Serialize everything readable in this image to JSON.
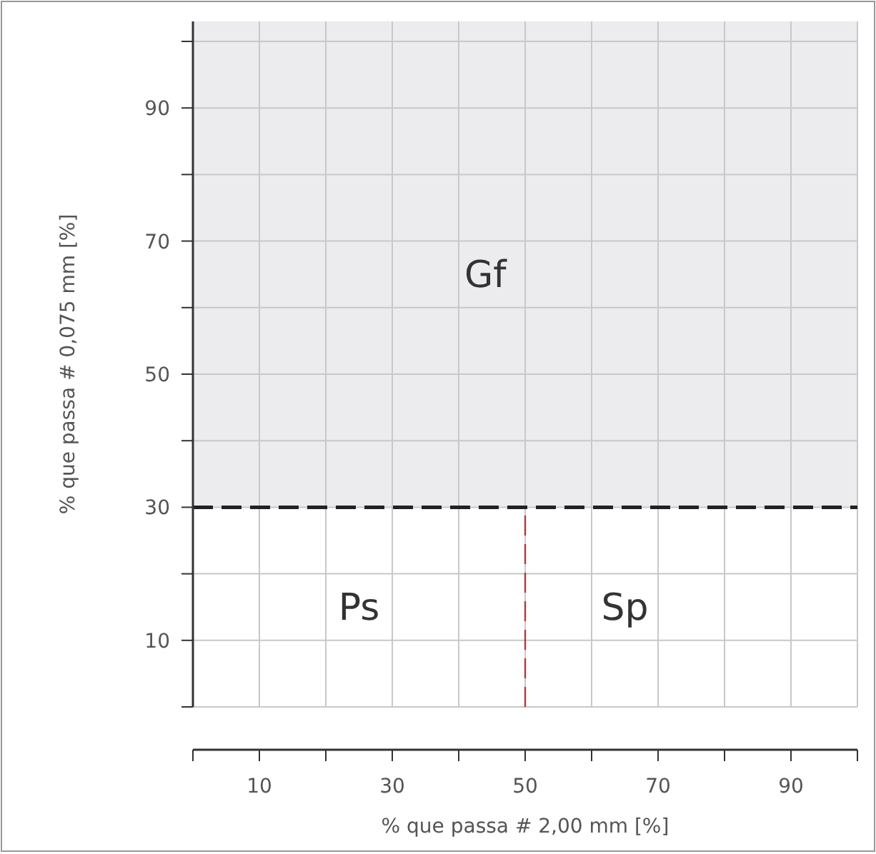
{
  "chart_data": {
    "type": "scatter",
    "xlabel": "% que passa # 2,00 mm [%]",
    "ylabel": "% que passa # 0,075 mm [%]",
    "xlim": [
      0,
      100
    ],
    "ylim": [
      0,
      100
    ],
    "xticks": [
      {
        "value": 0,
        "label": null
      },
      10,
      {
        "value": 20,
        "label": null
      },
      30,
      {
        "value": 40,
        "label": null
      },
      50,
      {
        "value": 60,
        "label": null
      },
      70,
      {
        "value": 80,
        "label": null
      },
      90,
      {
        "value": 100,
        "label": null
      }
    ],
    "yticks": [
      {
        "value": 0,
        "label": null
      },
      10,
      {
        "value": 20,
        "label": null
      },
      30,
      {
        "value": 40,
        "label": null
      },
      50,
      {
        "value": 60,
        "label": null
      },
      70,
      {
        "value": 80,
        "label": null
      },
      90,
      {
        "value": 100,
        "label": null
      }
    ],
    "grid": true,
    "bands": [
      {
        "axis": "y",
        "from": 30,
        "to": 100,
        "color": "#ececef"
      }
    ],
    "ref_lines": [
      {
        "axis": "y",
        "value": 30,
        "color": "#222222",
        "line_style": "dashed"
      },
      {
        "axis": "x",
        "value": 50,
        "color": "#b03a3a",
        "line_style": "dashed"
      }
    ],
    "annotations": [
      "Gf",
      "Ps",
      "Sp"
    ]
  }
}
